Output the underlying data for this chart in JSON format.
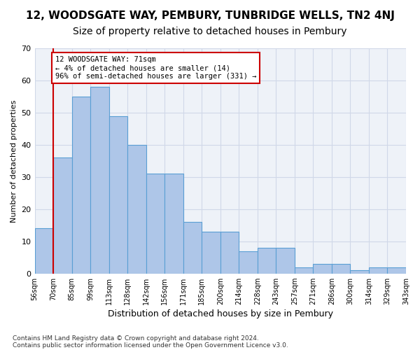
{
  "title": "12, WOODSGATE WAY, PEMBURY, TUNBRIDGE WELLS, TN2 4NJ",
  "subtitle": "Size of property relative to detached houses in Pembury",
  "xlabel": "Distribution of detached houses by size in Pembury",
  "ylabel": "Number of detached properties",
  "bar_values": [
    14,
    36,
    55,
    58,
    49,
    40,
    31,
    31,
    16,
    13,
    13,
    7,
    8,
    8,
    2,
    3,
    3,
    1,
    2,
    2
  ],
  "tick_labels": [
    "56sqm",
    "70sqm",
    "85sqm",
    "99sqm",
    "113sqm",
    "128sqm",
    "142sqm",
    "156sqm",
    "171sqm",
    "185sqm",
    "200sqm",
    "214sqm",
    "228sqm",
    "243sqm",
    "257sqm",
    "271sqm",
    "286sqm",
    "300sqm",
    "314sqm",
    "329sqm",
    "343sqm"
  ],
  "bar_color": "#aec6e8",
  "bar_edge_color": "#5a9fd4",
  "property_line_color": "#cc0000",
  "annotation_text": "12 WOODSGATE WAY: 71sqm\n← 4% of detached houses are smaller (14)\n96% of semi-detached houses are larger (331) →",
  "annotation_box_color": "#ffffff",
  "annotation_box_edge_color": "#cc0000",
  "ylim": [
    0,
    70
  ],
  "yticks": [
    0,
    10,
    20,
    30,
    40,
    50,
    60,
    70
  ],
  "grid_color": "#d0d8e8",
  "background_color": "#eef2f8",
  "footer_line1": "Contains HM Land Registry data © Crown copyright and database right 2024.",
  "footer_line2": "Contains public sector information licensed under the Open Government Licence v3.0.",
  "title_fontsize": 11,
  "subtitle_fontsize": 10
}
